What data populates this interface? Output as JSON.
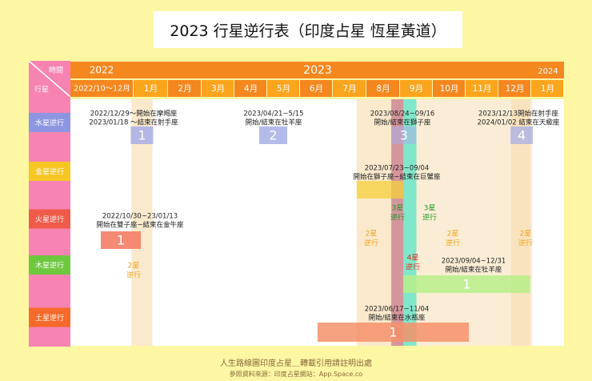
{
  "title": "2023 行星逆行表（印度占星 恆星黃道）",
  "footer": {
    "line1": "人生路線圖印度占星＿轉載引用請註明出處",
    "line2": "參照資料來源：印度占星網站：App.Space.co"
  },
  "colors": {
    "background": "#fdf6a3",
    "header_orange": "#f5871f",
    "header_orange_alt": "#fba51e",
    "pink": "#f783b3",
    "blue_badge": "#8d96e0",
    "gold_badge": "#f6c623",
    "red_badge": "#ef5b4b",
    "green_badge": "#6dc83e",
    "orange_badge": "#f56a2a",
    "teal": "#3fe4c6",
    "rose": "#f07b8e"
  },
  "chart_data": {
    "type": "table",
    "header": {
      "corner_top": "時間",
      "corner_bottom": "行星",
      "years": [
        "2022",
        "2023",
        "2024"
      ],
      "months": [
        "2022/10～12月",
        "1月",
        "2月",
        "3月",
        "4月",
        "5月",
        "6月",
        "7月",
        "8月",
        "9月",
        "10月",
        "11月",
        "12月",
        "1月"
      ]
    },
    "planets": [
      {
        "name": "水星逆行",
        "color": "#8d96e0"
      },
      {
        "name": "金星逆行",
        "color": "#f6c623"
      },
      {
        "name": "火星逆行",
        "color": "#ef5b4b"
      },
      {
        "name": "木星逆行",
        "color": "#6dc83e"
      },
      {
        "name": "土星逆行",
        "color": "#f56a2a"
      }
    ],
    "retrogrades": [
      {
        "planet": "水星逆行",
        "number": "1",
        "start": "2022/12/29",
        "end": "2023/01/18",
        "label": [
          "2022/12/29～開始在摩羯座",
          "2023/01/18 ～結束在射手座"
        ]
      },
      {
        "planet": "水星逆行",
        "number": "2",
        "start": "2023/04/21",
        "end": "2023/05/15",
        "label": [
          "2023/04/21~5/15",
          "開始/結束在牡羊座"
        ]
      },
      {
        "planet": "水星逆行",
        "number": "3",
        "start": "2023/08/24",
        "end": "2023/09/16",
        "label": [
          "2023/08/24~09/16",
          "開始/結束在獅子座"
        ]
      },
      {
        "planet": "水星逆行",
        "number": "4",
        "start": "2023/12/13",
        "end": "2024/01/02",
        "label": [
          "2023/12/13開始在射手座",
          "2024/01/02 結束在天蠍座"
        ]
      },
      {
        "planet": "金星逆行",
        "number": "",
        "start": "2023/07/23",
        "end": "2023/09/04",
        "label": [
          "2023/07/23~09/04",
          "開始在獅子座~結束在巨蟹座"
        ]
      },
      {
        "planet": "火星逆行",
        "number": "1",
        "start": "2022/10/30",
        "end": "2023/01/13",
        "label": [
          "2022/10/30~23/01/13",
          "開始在雙子座~結束在金牛座"
        ]
      },
      {
        "planet": "木星逆行",
        "number": "1",
        "start": "2023/09/04",
        "end": "2023/12/31",
        "label": [
          "2023/09/04~12/31",
          "開始/結束在牡羊座"
        ]
      },
      {
        "planet": "土星逆行",
        "number": "1",
        "start": "2023/06/17",
        "end": "2023/11/04",
        "label": [
          "2023/06/17~11/04",
          "開始/結束在水瓶座"
        ]
      }
    ],
    "overlaps": [
      {
        "label": "2星\n逆行",
        "color": "#f0a21e"
      },
      {
        "label": "2星\n逆行",
        "color": "#f0a21e"
      },
      {
        "label": "3星\n逆行",
        "color": "#1a9a2b"
      },
      {
        "label": "3星\n逆行",
        "color": "#1a9a2b"
      },
      {
        "label": "2星\n逆行",
        "color": "#f0a21e"
      },
      {
        "label": "2星\n逆行",
        "color": "#f0a21e"
      },
      {
        "label": "4星\n逆行",
        "color": "#e8261c"
      }
    ]
  }
}
